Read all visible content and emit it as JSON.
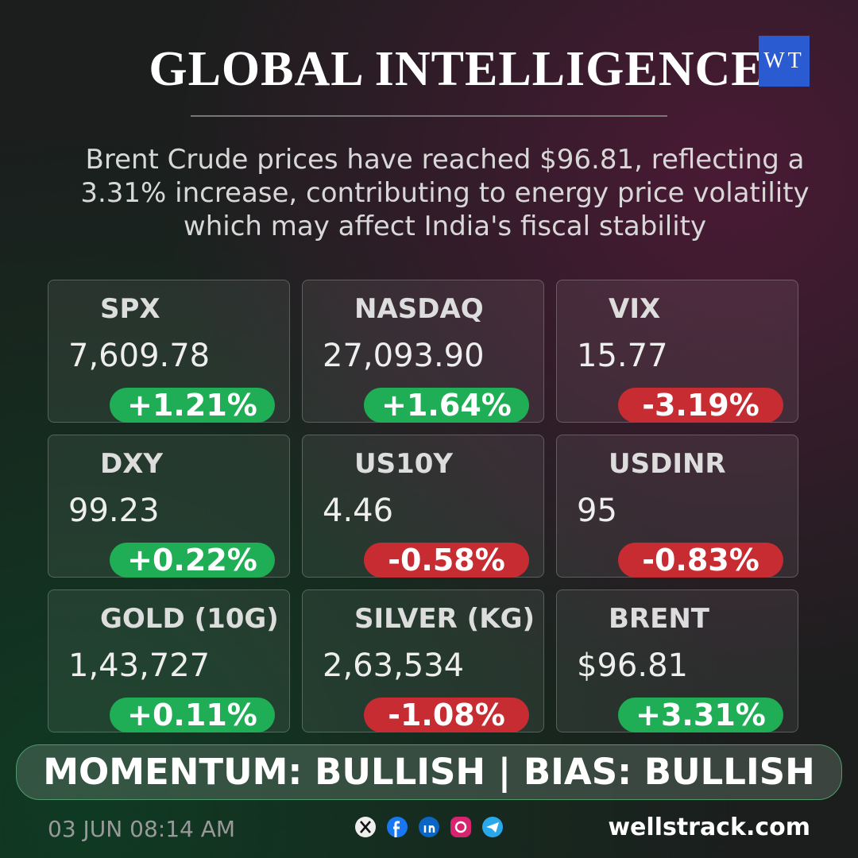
{
  "header": {
    "title": "GLOBAL INTELLIGENCE",
    "logo": "WT"
  },
  "summary": "Brent Crude prices have reached $96.81, reflecting a 3.31% increase, contributing to energy price volatility which may affect India's fiscal stability",
  "cards": [
    {
      "name": "SPX",
      "value": "7,609.78",
      "change": "+1.21%"
    },
    {
      "name": "NASDAQ",
      "value": "27,093.90",
      "change": "+1.64%"
    },
    {
      "name": "VIX",
      "value": "15.77",
      "change": "-3.19%"
    },
    {
      "name": "DXY",
      "value": "99.23",
      "change": "+0.22%"
    },
    {
      "name": "US10Y",
      "value": "4.46",
      "change": "-0.58%"
    },
    {
      "name": "USDINR",
      "value": "95",
      "change": "-0.83%"
    },
    {
      "name": "GOLD (10G)",
      "value": "1,43,727",
      "change": "+0.11%"
    },
    {
      "name": "SILVER (KG)",
      "value": "2,63,534",
      "change": "-1.08%"
    },
    {
      "name": "BRENT",
      "value": "$96.81",
      "change": "+3.31%"
    }
  ],
  "footer": {
    "sentiment": "MOMENTUM: BULLISH | BIAS: BULLISH",
    "date": "03 JUN 08:14 AM",
    "website": "wellstrack.com"
  }
}
